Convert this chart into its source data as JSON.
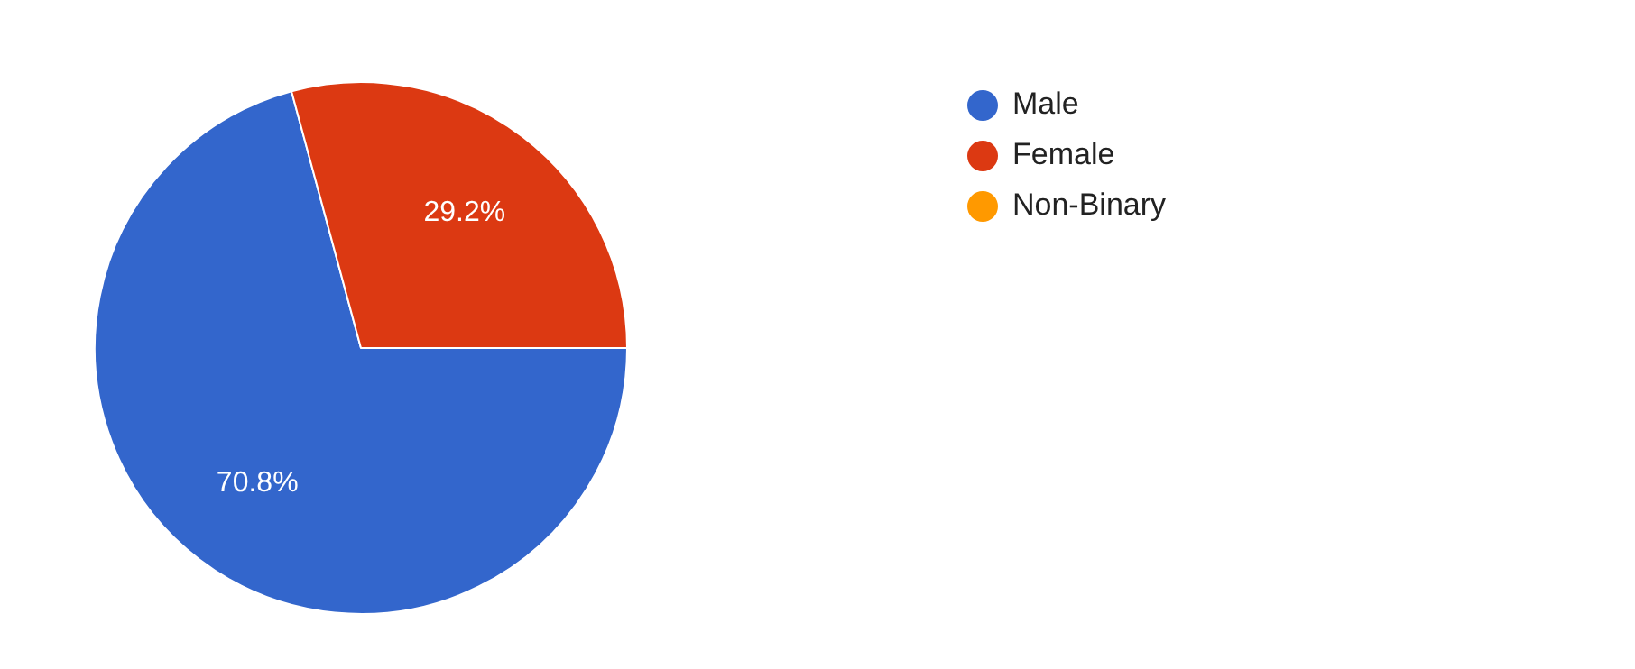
{
  "chart_data": {
    "type": "pie",
    "categories": [
      "Male",
      "Female",
      "Non-Binary"
    ],
    "values": [
      70.8,
      29.2,
      0
    ],
    "colors": [
      "#3366cc",
      "#dc3912",
      "#ff9900"
    ],
    "value_labels": [
      "70.8%",
      "29.2%",
      null
    ],
    "legend": "top right"
  }
}
